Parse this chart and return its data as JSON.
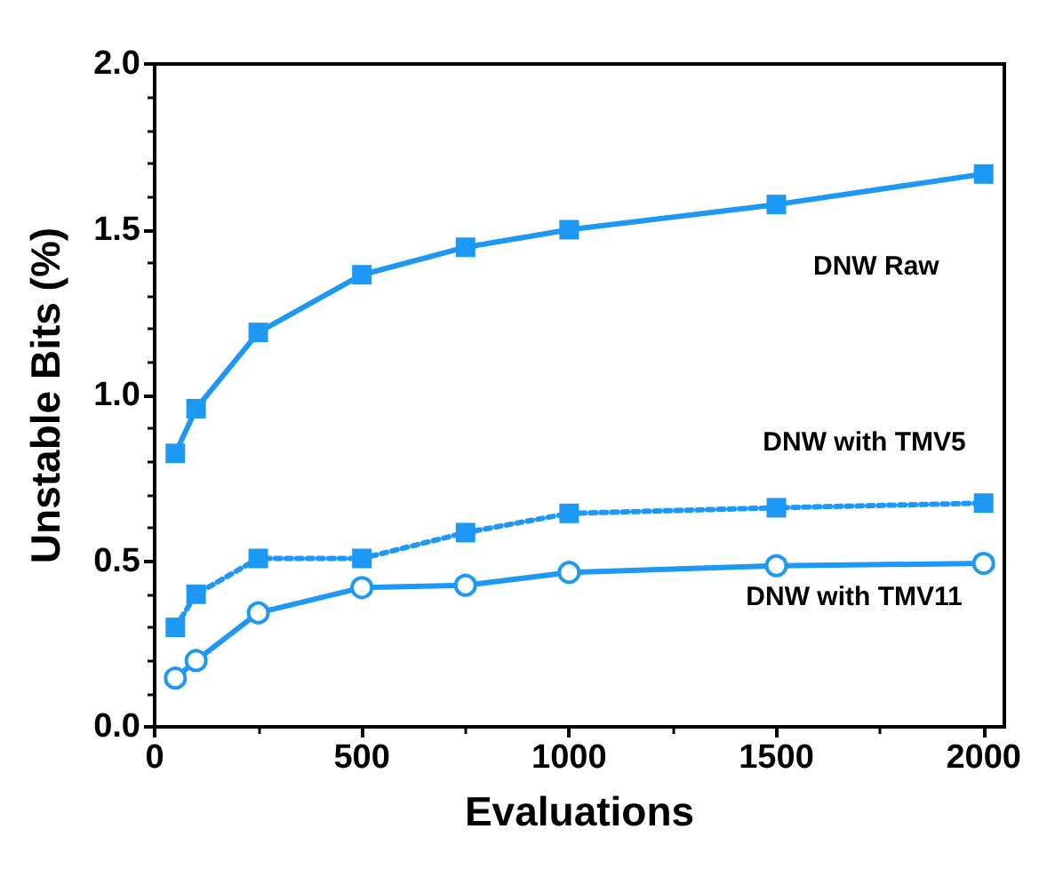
{
  "chart_data": {
    "type": "line",
    "xlabel": "Evaluations",
    "ylabel": "Unstable Bits (%)",
    "xlim": [
      0,
      2050
    ],
    "xticks": [
      0,
      500,
      1000,
      1500,
      2000
    ],
    "ylim": [
      0,
      2
    ],
    "yticks": [
      {
        "value": 0,
        "label": "0.0"
      },
      {
        "value": 0.5,
        "label": "0.5"
      },
      {
        "value": 1,
        "label": "1.0"
      },
      {
        "value": 1.5,
        "label": "1.5"
      },
      {
        "value": 2,
        "label": "2.0"
      }
    ],
    "grid": false,
    "legend": false,
    "x": [
      50,
      100,
      250,
      500,
      750,
      1000,
      1500,
      2000
    ],
    "series": [
      {
        "name": "DNW Raw",
        "color": "#1e98f5",
        "marker": "square",
        "line_style": "solid",
        "values": [
          0.825,
          0.96,
          1.19,
          1.364,
          1.447,
          1.5,
          1.576,
          1.668
        ]
      },
      {
        "name": "DNW with TMV5",
        "color": "#1e98f5",
        "marker": "square",
        "line_style": "dotted",
        "values": [
          0.3,
          0.4,
          0.508,
          0.508,
          0.586,
          0.644,
          0.661,
          0.675
        ]
      },
      {
        "name": "DNW with TMV11",
        "color": "#1e98f5",
        "marker": "circle",
        "line_style": "solid",
        "values": [
          0.147,
          0.2,
          0.344,
          0.42,
          0.427,
          0.466,
          0.486,
          0.493
        ]
      }
    ]
  }
}
